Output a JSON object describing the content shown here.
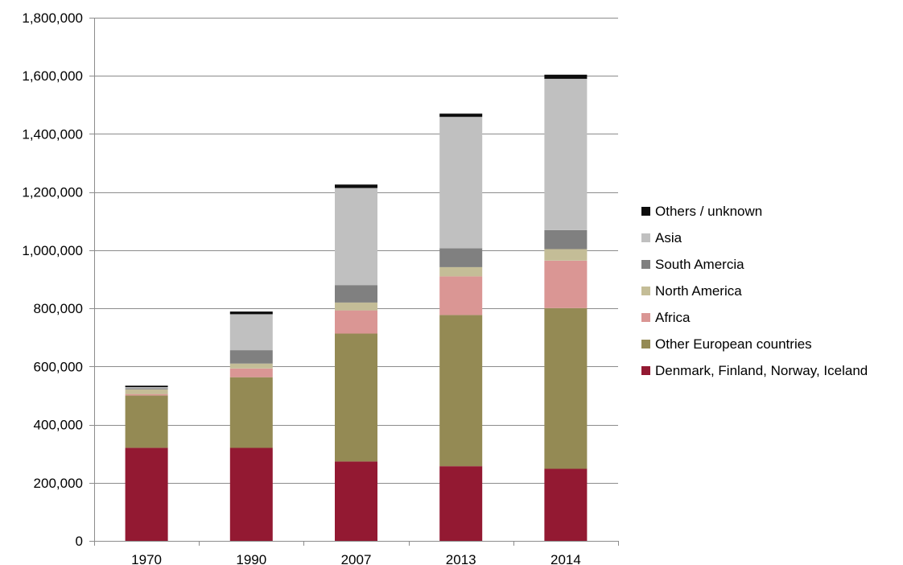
{
  "chart_data": {
    "type": "bar",
    "stacked": true,
    "categories": [
      "1970",
      "1990",
      "2007",
      "2013",
      "2014"
    ],
    "ylim": [
      0,
      1800000
    ],
    "yticks": [
      0,
      200000,
      400000,
      600000,
      800000,
      1000000,
      1200000,
      1400000,
      1600000,
      1800000
    ],
    "ytick_labels": [
      "0",
      "200,000",
      "400,000",
      "600,000",
      "800,000",
      "1,000,000",
      "1,200,000",
      "1,400,000",
      "1,600,000",
      "1,800,000"
    ],
    "grid": true,
    "legend_position": "right",
    "title": "",
    "xlabel": "",
    "ylabel": "",
    "series": [
      {
        "name": "Denmark, Finland, Norway, Iceland",
        "color": "#931932",
        "values": [
          320000,
          320000,
          273000,
          257000,
          248000
        ]
      },
      {
        "name": "Other European countries",
        "color": "#948a54",
        "values": [
          180000,
          243000,
          440000,
          520000,
          553000
        ]
      },
      {
        "name": "Africa",
        "color": "#da9694",
        "values": [
          5000,
          30000,
          80000,
          133000,
          163000
        ]
      },
      {
        "name": "North America",
        "color": "#c4bd97",
        "values": [
          16000,
          17000,
          27000,
          32000,
          40000
        ]
      },
      {
        "name": "South Amercia",
        "color": "#808080",
        "values": [
          4000,
          46000,
          60000,
          65000,
          65000
        ]
      },
      {
        "name": "Asia",
        "color": "#c0c0c0",
        "values": [
          4000,
          124000,
          334000,
          452000,
          521000
        ]
      },
      {
        "name": "Others / unknown",
        "color": "#0d0d0d",
        "values": [
          5000,
          9000,
          12000,
          11000,
          14000
        ]
      }
    ]
  }
}
